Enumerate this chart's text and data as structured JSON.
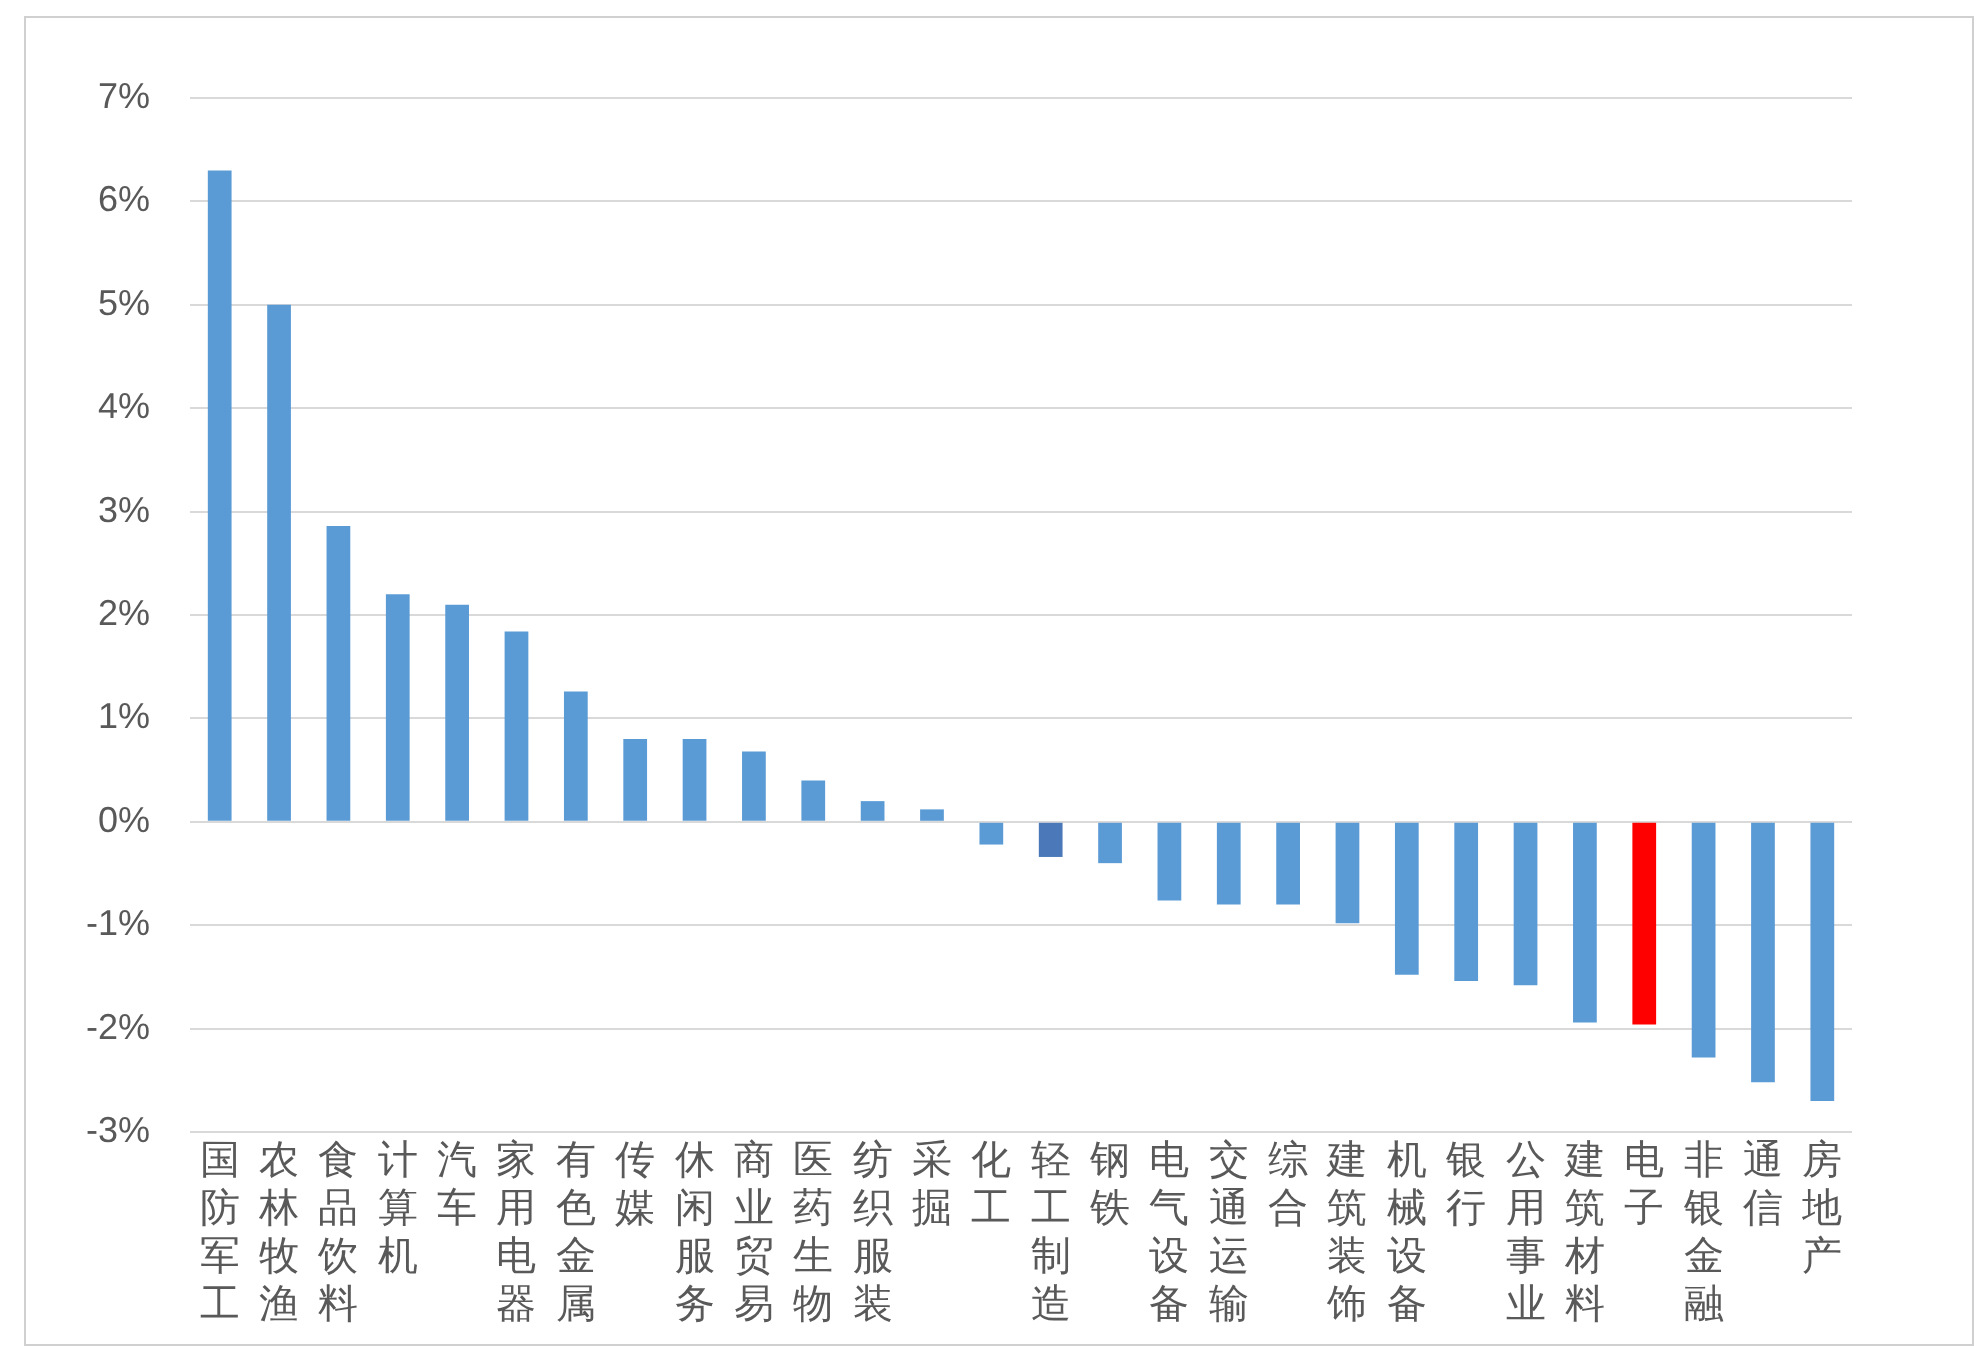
{
  "chart_data": {
    "type": "bar",
    "categories": [
      "国防军工",
      "农林牧渔",
      "食品饮料",
      "计算机",
      "汽车",
      "家用电器",
      "有色金属",
      "传媒",
      "休闲服务",
      "商业贸易",
      "医药生物",
      "纺织服装",
      "采掘",
      "化工",
      "轻工制造",
      "钢铁",
      "电气设备",
      "交通运输",
      "综合",
      "建筑装饰",
      "机械设备",
      "银行",
      "公用事业",
      "建筑材料",
      "电子",
      "非银金融",
      "通信",
      "房地产"
    ],
    "values": [
      6.3,
      5.0,
      2.86,
      2.2,
      2.1,
      1.84,
      1.26,
      0.8,
      0.8,
      0.68,
      0.4,
      0.2,
      0.12,
      -0.22,
      -0.34,
      -0.4,
      -0.76,
      -0.8,
      -0.8,
      -0.98,
      -1.48,
      -1.54,
      -1.58,
      -1.94,
      -1.96,
      -2.28,
      -2.52,
      -2.7
    ],
    "colors": [
      "#5b9bd5",
      "#5b9bd5",
      "#5b9bd5",
      "#5b9bd5",
      "#5b9bd5",
      "#5b9bd5",
      "#5b9bd5",
      "#5b9bd5",
      "#5b9bd5",
      "#5b9bd5",
      "#5b9bd5",
      "#5b9bd5",
      "#5b9bd5",
      "#5b9bd5",
      "#4a78b8",
      "#5b9bd5",
      "#5b9bd5",
      "#5b9bd5",
      "#5b9bd5",
      "#5b9bd5",
      "#5b9bd5",
      "#5b9bd5",
      "#5b9bd5",
      "#5b9bd5",
      "#ff0000",
      "#5b9bd5",
      "#5b9bd5",
      "#5b9bd5"
    ],
    "ylim": [
      -3,
      7
    ],
    "yticks": [
      {
        "value": -3,
        "label": "-3%"
      },
      {
        "value": -2,
        "label": "-2%"
      },
      {
        "value": -1,
        "label": "-1%"
      },
      {
        "value": 0,
        "label": "0%"
      },
      {
        "value": 1,
        "label": "1%"
      },
      {
        "value": 2,
        "label": "2%"
      },
      {
        "value": 3,
        "label": "3%"
      },
      {
        "value": 4,
        "label": "4%"
      },
      {
        "value": 5,
        "label": "5%"
      },
      {
        "value": 6,
        "label": "6%"
      },
      {
        "value": 7,
        "label": "7%"
      }
    ],
    "grid": "y"
  }
}
